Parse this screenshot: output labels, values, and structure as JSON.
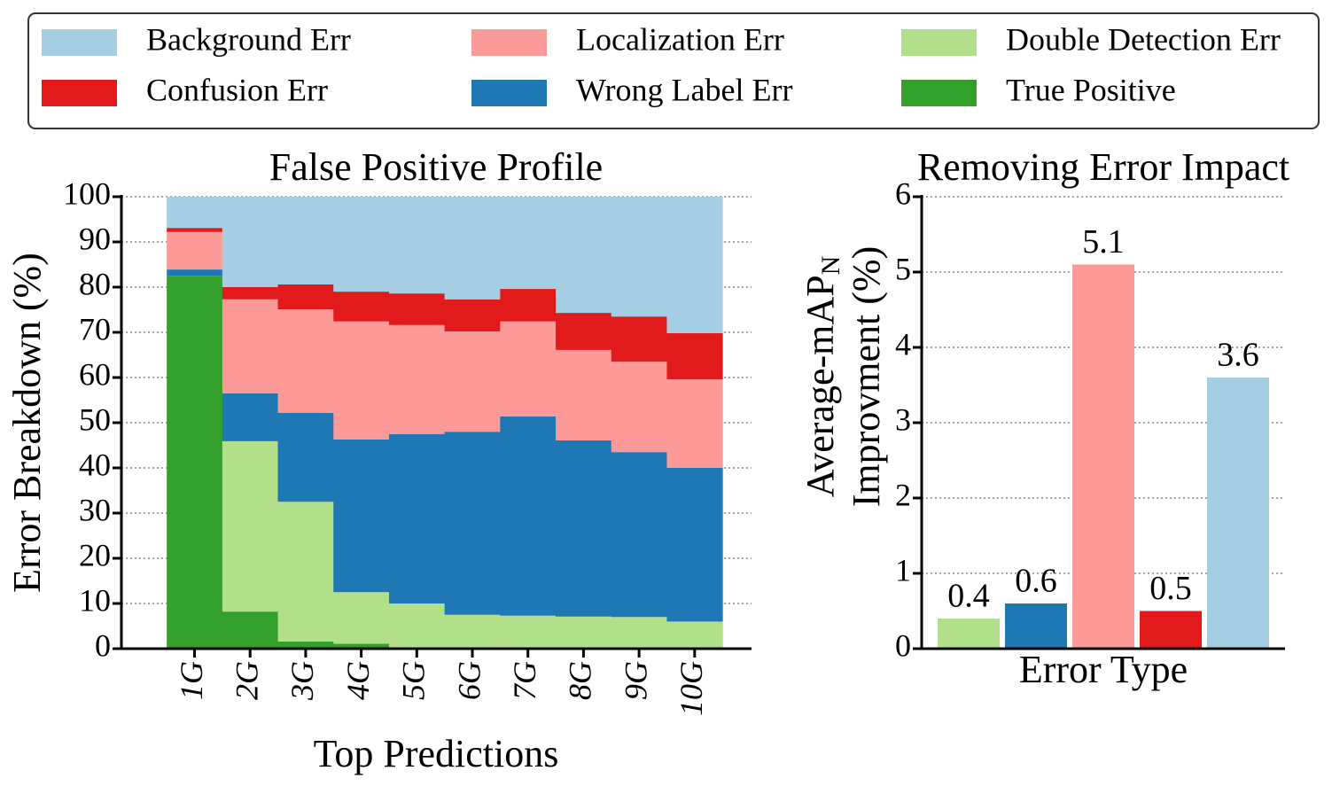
{
  "chart_data": [
    {
      "type": "area",
      "stacked": true,
      "step": true,
      "title": "False Positive Profile",
      "xlabel": "Top Predictions",
      "ylabel": "Error Breakdown (%)",
      "categories": [
        "1G",
        "2G",
        "3G",
        "4G",
        "5G",
        "6G",
        "7G",
        "8G",
        "9G",
        "10G"
      ],
      "series": [
        {
          "name": "True Positive",
          "color": "#33a02c",
          "values": [
            82.5,
            8.2,
            1.6,
            1.1,
            0,
            0,
            0,
            0,
            0,
            0
          ]
        },
        {
          "name": "Double Detection Err",
          "color": "#b2df8a",
          "values": [
            0,
            37.7,
            30.9,
            11.4,
            10.0,
            7.5,
            7.3,
            7.1,
            7.0,
            6.0
          ]
        },
        {
          "name": "Wrong Label Err",
          "color": "#1f78b4",
          "values": [
            1.4,
            10.6,
            19.7,
            33.8,
            37.5,
            40.5,
            44.1,
            39.0,
            36.5,
            34.0
          ]
        },
        {
          "name": "Localization Err",
          "color": "#fb9a99",
          "values": [
            8.3,
            20.8,
            22.9,
            26.1,
            24.1,
            22.2,
            21.0,
            20.0,
            20.0,
            19.6
          ]
        },
        {
          "name": "Confusion Err",
          "color": "#e31a1c",
          "values": [
            0.9,
            2.7,
            5.5,
            6.6,
            7.0,
            7.1,
            7.2,
            8.2,
            10.0,
            10.2
          ]
        },
        {
          "name": "Background Err",
          "color": "#a6cee3",
          "values": [
            6.9,
            20.0,
            19.4,
            21.0,
            21.4,
            22.7,
            20.4,
            25.7,
            26.5,
            30.2
          ]
        }
      ],
      "ylim": [
        0,
        100
      ],
      "yticks": [
        0,
        10,
        20,
        30,
        40,
        50,
        60,
        70,
        80,
        90,
        100
      ],
      "grid": true,
      "legend": "top"
    },
    {
      "type": "bar",
      "title": "Removing Error Impact",
      "xlabel": "Error Type",
      "ylabel": {
        "main": "Average-mAP",
        "subscript": "N",
        "second_line": "Improvment (%)"
      },
      "categories": [
        null,
        null,
        null,
        null,
        null
      ],
      "values": [
        0.4,
        0.6,
        5.1,
        0.5,
        3.6
      ],
      "colors": [
        "#b2df8a",
        "#1f78b4",
        "#fb9a99",
        "#e31a1c",
        "#a6cee3"
      ],
      "ylim": [
        0,
        6
      ],
      "yticks": [
        0,
        1,
        2,
        3,
        4,
        5,
        6
      ],
      "grid": true
    }
  ]
}
